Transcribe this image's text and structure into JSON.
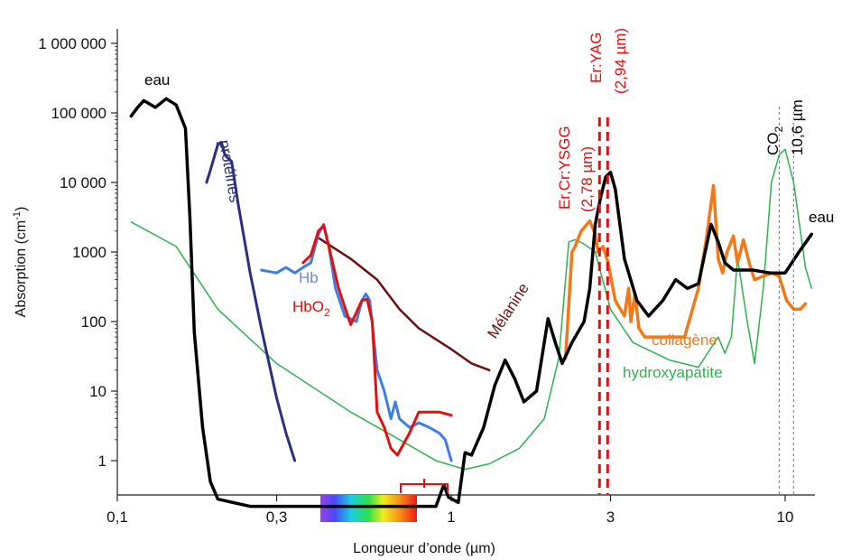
{
  "chart_data": {
    "type": "line",
    "title": "",
    "xlabel": "Longueur d’onde (µm)",
    "ylabel": "Absorption (cm-1)",
    "ylabel_main": "Absorption (cm",
    "ylabel_sup": "-1",
    "ylabel_end": ")",
    "xscale": "log",
    "yscale": "log",
    "xlim": [
      0.1,
      12
    ],
    "ylim": [
      0.2,
      1000000
    ],
    "grid": false,
    "x_ticks": [
      {
        "value": 0.1,
        "label": "0,1"
      },
      {
        "value": 0.3,
        "label": "0,3"
      },
      {
        "value": 1,
        "label": "1"
      },
      {
        "value": 3,
        "label": "3"
      },
      {
        "value": 10,
        "label": "10"
      }
    ],
    "y_ticks": [
      {
        "value": 1,
        "label": "1"
      },
      {
        "value": 10,
        "label": "10"
      },
      {
        "value": 100,
        "label": "100"
      },
      {
        "value": 1000,
        "label": "1000"
      },
      {
        "value": 10000,
        "label": "10 000"
      },
      {
        "value": 100000,
        "label": "100 000"
      },
      {
        "value": 1000000,
        "label": "1 000 000"
      }
    ],
    "series": [
      {
        "name": "eau",
        "color": "#000000",
        "points": [
          [
            0.11,
            90000
          ],
          [
            0.115,
            120000
          ],
          [
            0.12,
            150000
          ],
          [
            0.13,
            120000
          ],
          [
            0.14,
            160000
          ],
          [
            0.15,
            130000
          ],
          [
            0.16,
            60000
          ],
          [
            0.165,
            3000
          ],
          [
            0.17,
            70
          ],
          [
            0.18,
            3
          ],
          [
            0.19,
            0.5
          ],
          [
            0.2,
            0.28
          ],
          [
            0.25,
            0.22
          ],
          [
            0.3,
            0.22
          ],
          [
            0.5,
            0.22
          ],
          [
            0.7,
            0.22
          ],
          [
            0.9,
            0.22
          ],
          [
            0.95,
            0.45
          ],
          [
            0.98,
            0.3
          ],
          [
            1.05,
            0.25
          ],
          [
            1.1,
            1.3
          ],
          [
            1.15,
            1.2
          ],
          [
            1.25,
            3
          ],
          [
            1.35,
            12
          ],
          [
            1.45,
            28
          ],
          [
            1.55,
            15
          ],
          [
            1.65,
            7
          ],
          [
            1.8,
            10
          ],
          [
            1.95,
            110
          ],
          [
            2.05,
            50
          ],
          [
            2.15,
            25
          ],
          [
            2.3,
            50
          ],
          [
            2.5,
            100
          ],
          [
            2.6,
            300
          ],
          [
            2.7,
            2500
          ],
          [
            2.8,
            6000
          ],
          [
            2.9,
            12000
          ],
          [
            3.0,
            14000
          ],
          [
            3.1,
            8000
          ],
          [
            3.3,
            800
          ],
          [
            3.6,
            200
          ],
          [
            3.9,
            120
          ],
          [
            4.3,
            200
          ],
          [
            4.7,
            400
          ],
          [
            5.1,
            300
          ],
          [
            5.5,
            350
          ],
          [
            6.0,
            2500
          ],
          [
            6.3,
            1400
          ],
          [
            6.6,
            700
          ],
          [
            7.0,
            550
          ],
          [
            8,
            550
          ],
          [
            9,
            500
          ],
          [
            10,
            500
          ],
          [
            11,
            1000
          ],
          [
            12,
            1800
          ]
        ]
      },
      {
        "name": "protéines",
        "color": "#2b2f7e",
        "points": [
          [
            0.185,
            10000
          ],
          [
            0.19,
            15000
          ],
          [
            0.2,
            35000
          ],
          [
            0.205,
            38000
          ],
          [
            0.21,
            25000
          ],
          [
            0.215,
            22000
          ],
          [
            0.22,
            20000
          ],
          [
            0.23,
            5000
          ],
          [
            0.25,
            500
          ],
          [
            0.27,
            80
          ],
          [
            0.3,
            8
          ],
          [
            0.32,
            2.5
          ],
          [
            0.34,
            1
          ]
        ]
      },
      {
        "name": "Hb",
        "color": "#3f7de0",
        "points": [
          [
            0.27,
            550
          ],
          [
            0.3,
            500
          ],
          [
            0.32,
            600
          ],
          [
            0.34,
            500
          ],
          [
            0.36,
            600
          ],
          [
            0.38,
            700
          ],
          [
            0.4,
            1800
          ],
          [
            0.415,
            2500
          ],
          [
            0.43,
            1200
          ],
          [
            0.45,
            300
          ],
          [
            0.48,
            120
          ],
          [
            0.52,
            100
          ],
          [
            0.54,
            200
          ],
          [
            0.555,
            250
          ],
          [
            0.57,
            200
          ],
          [
            0.6,
            20
          ],
          [
            0.63,
            10
          ],
          [
            0.66,
            4
          ],
          [
            0.68,
            7
          ],
          [
            0.7,
            4
          ],
          [
            0.75,
            3
          ],
          [
            0.8,
            3.5
          ],
          [
            0.86,
            3
          ],
          [
            0.92,
            2.5
          ],
          [
            0.96,
            2
          ],
          [
            1.0,
            1
          ]
        ]
      },
      {
        "name": "HbO2",
        "color": "#e01010",
        "points": [
          [
            0.36,
            700
          ],
          [
            0.38,
            900
          ],
          [
            0.4,
            2000
          ],
          [
            0.415,
            2400
          ],
          [
            0.43,
            1200
          ],
          [
            0.46,
            300
          ],
          [
            0.5,
            90
          ],
          [
            0.54,
            200
          ],
          [
            0.56,
            210
          ],
          [
            0.58,
            100
          ],
          [
            0.6,
            5
          ],
          [
            0.63,
            3
          ],
          [
            0.66,
            1.5
          ],
          [
            0.69,
            1.2
          ],
          [
            0.75,
            2.5
          ],
          [
            0.8,
            5
          ],
          [
            0.86,
            5
          ],
          [
            0.92,
            5
          ],
          [
            1.0,
            4.5
          ]
        ]
      },
      {
        "name": "Mélanine",
        "color": "#6b1010",
        "points": [
          [
            0.4,
            1600
          ],
          [
            0.5,
            800
          ],
          [
            0.6,
            400
          ],
          [
            0.7,
            150
          ],
          [
            0.8,
            80
          ],
          [
            1.0,
            40
          ],
          [
            1.15,
            25
          ],
          [
            1.3,
            20
          ]
        ]
      },
      {
        "name": "collagène",
        "color": "#f07a1a",
        "points": [
          [
            2.2,
            30
          ],
          [
            2.3,
            1000
          ],
          [
            2.35,
            1200
          ],
          [
            2.45,
            2000
          ],
          [
            2.6,
            2800
          ],
          [
            2.7,
            1800
          ],
          [
            2.75,
            1000
          ],
          [
            2.85,
            1200
          ],
          [
            2.95,
            700
          ],
          [
            3.1,
            200
          ],
          [
            3.3,
            120
          ],
          [
            3.4,
            300
          ],
          [
            3.45,
            100
          ],
          [
            3.55,
            250
          ],
          [
            3.65,
            80
          ],
          [
            3.8,
            60
          ],
          [
            4.5,
            60
          ],
          [
            5,
            60
          ],
          [
            5.5,
            300
          ],
          [
            5.8,
            1500
          ],
          [
            6.1,
            9000
          ],
          [
            6.3,
            800
          ],
          [
            6.5,
            500
          ],
          [
            6.7,
            1000
          ],
          [
            7.0,
            1700
          ],
          [
            7.2,
            700
          ],
          [
            7.5,
            1500
          ],
          [
            7.8,
            700
          ],
          [
            8.1,
            400
          ],
          [
            8.6,
            450
          ],
          [
            9.1,
            500
          ],
          [
            9.6,
            450
          ],
          [
            10.1,
            200
          ],
          [
            10.6,
            150
          ],
          [
            11.1,
            150
          ],
          [
            11.5,
            180
          ]
        ]
      },
      {
        "name": "hydroxyapatite",
        "color": "#30b050",
        "points": [
          [
            0.11,
            2700
          ],
          [
            0.15,
            1200
          ],
          [
            0.2,
            150
          ],
          [
            0.3,
            25
          ],
          [
            0.5,
            5
          ],
          [
            0.7,
            2
          ],
          [
            0.9,
            1.0
          ],
          [
            1.1,
            0.75
          ],
          [
            1.3,
            0.9
          ],
          [
            1.6,
            1.5
          ],
          [
            1.9,
            4
          ],
          [
            2.1,
            30
          ],
          [
            2.25,
            1400
          ],
          [
            2.35,
            1500
          ],
          [
            2.5,
            1300
          ],
          [
            2.7,
            1000
          ],
          [
            3.0,
            150
          ],
          [
            3.5,
            50
          ],
          [
            4.5,
            28
          ],
          [
            5.5,
            22
          ],
          [
            6.3,
            60
          ],
          [
            6.6,
            35
          ],
          [
            6.9,
            60
          ],
          [
            7.2,
            800
          ],
          [
            7.4,
            350
          ],
          [
            7.7,
            100
          ],
          [
            8.1,
            25
          ],
          [
            8.6,
            300
          ],
          [
            9.1,
            10000
          ],
          [
            9.6,
            25000
          ],
          [
            10.0,
            30000
          ],
          [
            10.6,
            10000
          ],
          [
            11.5,
            600
          ],
          [
            12,
            300
          ]
        ]
      }
    ],
    "series_labels": {
      "eau_left": "eau",
      "eau_right": "eau",
      "proteines": "protéines",
      "hb": "Hb",
      "hbo2_main": "HbO",
      "hbo2_sub": "2",
      "melanine": "Mélanine",
      "collagene": "collagène",
      "hydroxyapatite": "hydroxyapatite"
    },
    "laser_lines": [
      {
        "wavelength_um": 2.78,
        "color": "#e01010",
        "label1": "Er,Cr:YSGG",
        "label2": "(2,78 µm)"
      },
      {
        "wavelength_um": 2.94,
        "color": "#e01010",
        "label1": "Er:YAG",
        "label2": "(2,94 µm)"
      },
      {
        "wavelength_um": 9.6,
        "color": "#7070d0",
        "label1": "CO",
        "label1_sub": "2",
        "label2": ""
      },
      {
        "wavelength_um": 10.6,
        "color": "#7070d0",
        "label1": "",
        "label2": "10,6 µm"
      }
    ],
    "visible_spectrum": {
      "from_um": 0.4,
      "to_um": 0.7
    }
  }
}
